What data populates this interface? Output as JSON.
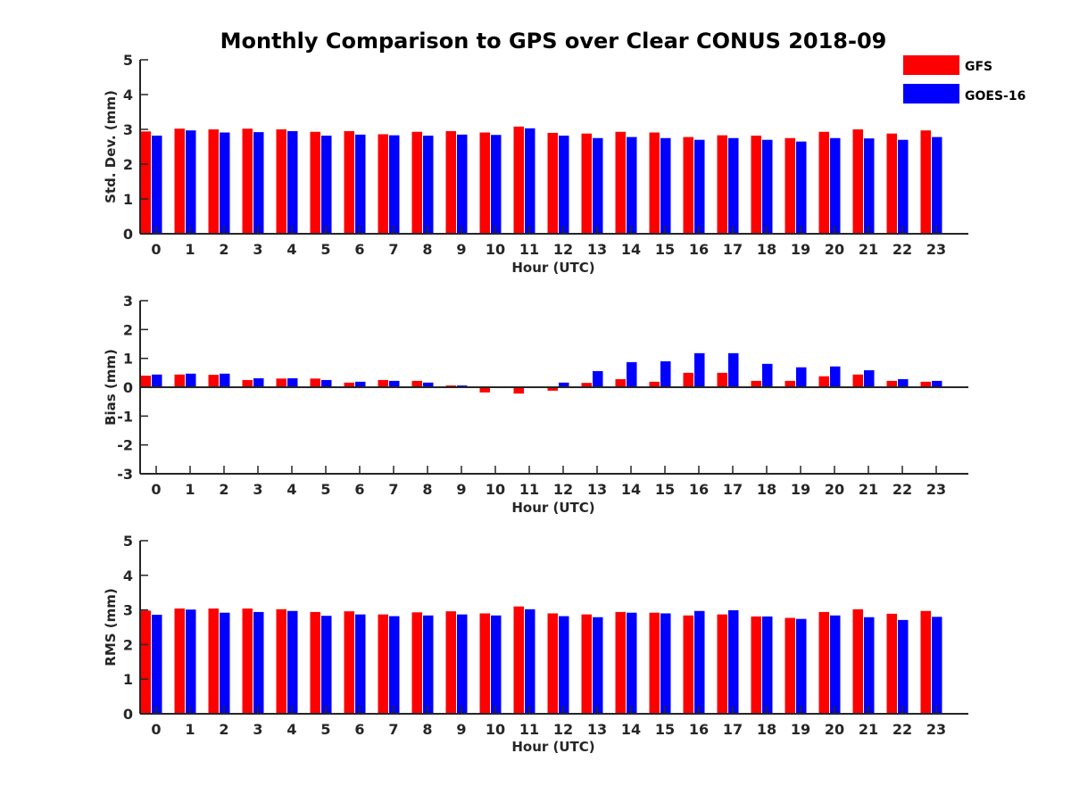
{
  "title": "Monthly Comparison to GPS over Clear CONUS 2018-09",
  "legend": {
    "placement": "top-right",
    "items": [
      {
        "label": "GFS",
        "color": "#ff0000"
      },
      {
        "label": "GOES-16",
        "color": "#0000ff"
      }
    ]
  },
  "chart_data": [
    {
      "type": "bar",
      "xlabel": "Hour (UTC)",
      "ylabel": "Std. Dev. (mm)",
      "ylim": [
        0,
        5
      ],
      "yticks": [
        0,
        1,
        2,
        3,
        4,
        5
      ],
      "categories": [
        "0",
        "1",
        "2",
        "3",
        "4",
        "5",
        "6",
        "7",
        "8",
        "9",
        "10",
        "11",
        "12",
        "13",
        "14",
        "15",
        "16",
        "17",
        "18",
        "19",
        "20",
        "21",
        "22",
        "23"
      ],
      "series": [
        {
          "name": "GFS",
          "color": "#ff0000",
          "values": [
            2.94,
            3.02,
            3.0,
            3.02,
            3.0,
            2.93,
            2.95,
            2.86,
            2.93,
            2.95,
            2.91,
            3.08,
            2.9,
            2.88,
            2.93,
            2.91,
            2.78,
            2.83,
            2.82,
            2.75,
            2.93,
            3.0,
            2.88,
            2.97
          ]
        },
        {
          "name": "GOES-16",
          "color": "#0000ff",
          "values": [
            2.82,
            2.97,
            2.91,
            2.92,
            2.95,
            2.82,
            2.85,
            2.83,
            2.82,
            2.85,
            2.84,
            3.03,
            2.82,
            2.75,
            2.78,
            2.75,
            2.7,
            2.75,
            2.7,
            2.65,
            2.75,
            2.74,
            2.7,
            2.78
          ]
        }
      ]
    },
    {
      "type": "bar",
      "xlabel": "Hour (UTC)",
      "ylabel": "Bias (mm)",
      "ylim": [
        -3,
        3
      ],
      "yticks": [
        -3,
        -2,
        -1,
        0,
        1,
        2,
        3
      ],
      "categories": [
        "0",
        "1",
        "2",
        "3",
        "4",
        "5",
        "6",
        "7",
        "8",
        "9",
        "10",
        "11",
        "12",
        "13",
        "14",
        "15",
        "16",
        "17",
        "18",
        "19",
        "20",
        "21",
        "22",
        "23"
      ],
      "series": [
        {
          "name": "GFS",
          "color": "#ff0000",
          "values": [
            0.4,
            0.44,
            0.43,
            0.25,
            0.3,
            0.3,
            0.16,
            0.25,
            0.22,
            0.06,
            -0.18,
            -0.22,
            -0.12,
            0.15,
            0.28,
            0.19,
            0.5,
            0.5,
            0.22,
            0.22,
            0.38,
            0.44,
            0.22,
            0.19
          ]
        },
        {
          "name": "GOES-16",
          "color": "#0000ff",
          "values": [
            0.44,
            0.47,
            0.47,
            0.31,
            0.31,
            0.25,
            0.19,
            0.22,
            0.16,
            0.06,
            0.03,
            -0.03,
            0.16,
            0.56,
            0.87,
            0.9,
            1.18,
            1.18,
            0.81,
            0.69,
            0.72,
            0.59,
            0.28,
            0.22
          ]
        }
      ]
    },
    {
      "type": "bar",
      "xlabel": "Hour (UTC)",
      "ylabel": "RMS (mm)",
      "ylim": [
        0,
        5
      ],
      "yticks": [
        0,
        1,
        2,
        3,
        4,
        5
      ],
      "categories": [
        "0",
        "1",
        "2",
        "3",
        "4",
        "5",
        "6",
        "7",
        "8",
        "9",
        "10",
        "11",
        "12",
        "13",
        "14",
        "15",
        "16",
        "17",
        "18",
        "19",
        "20",
        "21",
        "22",
        "23"
      ],
      "series": [
        {
          "name": "GFS",
          "color": "#ff0000",
          "values": [
            2.98,
            3.04,
            3.04,
            3.04,
            3.02,
            2.94,
            2.96,
            2.87,
            2.93,
            2.96,
            2.9,
            3.1,
            2.9,
            2.87,
            2.94,
            2.92,
            2.84,
            2.87,
            2.81,
            2.77,
            2.94,
            3.02,
            2.89,
            2.97
          ]
        },
        {
          "name": "GOES-16",
          "color": "#0000ff",
          "values": [
            2.86,
            3.01,
            2.92,
            2.94,
            2.97,
            2.83,
            2.87,
            2.82,
            2.84,
            2.87,
            2.84,
            3.02,
            2.82,
            2.79,
            2.92,
            2.9,
            2.97,
            2.99,
            2.81,
            2.74,
            2.84,
            2.79,
            2.71,
            2.8
          ]
        }
      ]
    }
  ]
}
